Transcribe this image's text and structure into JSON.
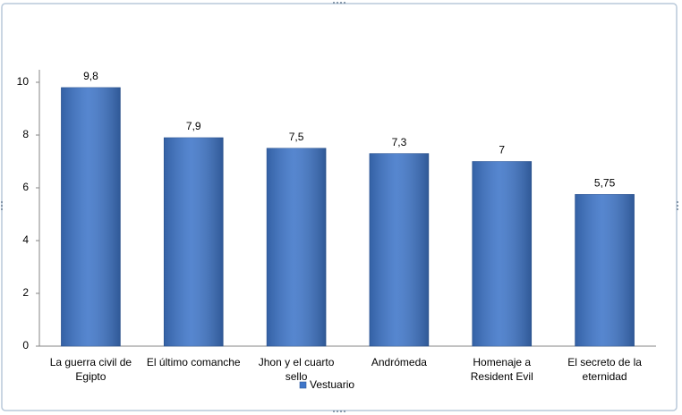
{
  "chart_data": {
    "type": "bar",
    "categories": [
      "La guerra civil de Egipto",
      "El último comanche",
      "Jhon y el cuarto sello",
      "Andrómeda",
      "Homenaje a Resident Evil",
      "El secreto de la eternidad"
    ],
    "series": [
      {
        "name": "Vestuario",
        "color": "#3f76c9",
        "values": [
          9.8,
          7.9,
          7.5,
          7.3,
          7,
          5.75
        ],
        "value_labels": [
          "9,8",
          "7,9",
          "7,5",
          "7,3",
          "7",
          "5,75"
        ]
      }
    ],
    "ylim": [
      0,
      10
    ],
    "yticks": [
      0,
      2,
      4,
      6,
      8,
      10
    ],
    "grid": false,
    "legend": "bottom"
  }
}
